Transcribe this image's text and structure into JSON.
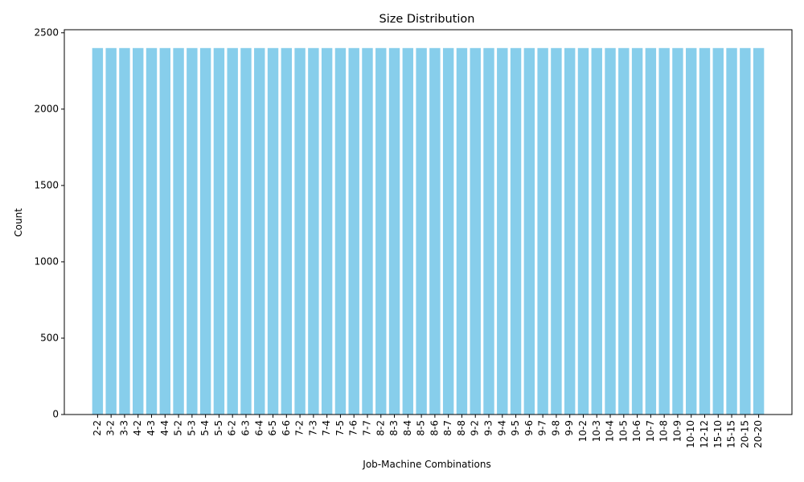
{
  "chart_data": {
    "type": "bar",
    "title": "Size Distribution",
    "xlabel": "Job-Machine Combinations",
    "ylabel": "Count",
    "ylim": [
      0,
      2520
    ],
    "yticks": [
      0,
      500,
      1000,
      1500,
      2000,
      2500
    ],
    "grid": false,
    "bar_color": "#87ceeb",
    "categories": [
      "2-2",
      "3-2",
      "3-3",
      "4-2",
      "4-3",
      "4-4",
      "5-2",
      "5-3",
      "5-4",
      "5-5",
      "6-2",
      "6-3",
      "6-4",
      "6-5",
      "6-6",
      "7-2",
      "7-3",
      "7-4",
      "7-5",
      "7-6",
      "7-7",
      "8-2",
      "8-3",
      "8-4",
      "8-5",
      "8-6",
      "8-7",
      "8-8",
      "9-2",
      "9-3",
      "9-4",
      "9-5",
      "9-6",
      "9-7",
      "9-8",
      "9-9",
      "10-2",
      "10-3",
      "10-4",
      "10-5",
      "10-6",
      "10-7",
      "10-8",
      "10-9",
      "10-10",
      "12-12",
      "15-10",
      "15-15",
      "20-15",
      "20-20"
    ],
    "values": [
      2400,
      2400,
      2400,
      2400,
      2400,
      2400,
      2400,
      2400,
      2400,
      2400,
      2400,
      2400,
      2400,
      2400,
      2400,
      2400,
      2400,
      2400,
      2400,
      2400,
      2400,
      2400,
      2400,
      2400,
      2400,
      2400,
      2400,
      2400,
      2400,
      2400,
      2400,
      2400,
      2400,
      2400,
      2400,
      2400,
      2400,
      2400,
      2400,
      2400,
      2400,
      2400,
      2400,
      2400,
      2400,
      2400,
      2400,
      2400,
      2400,
      2400
    ]
  }
}
